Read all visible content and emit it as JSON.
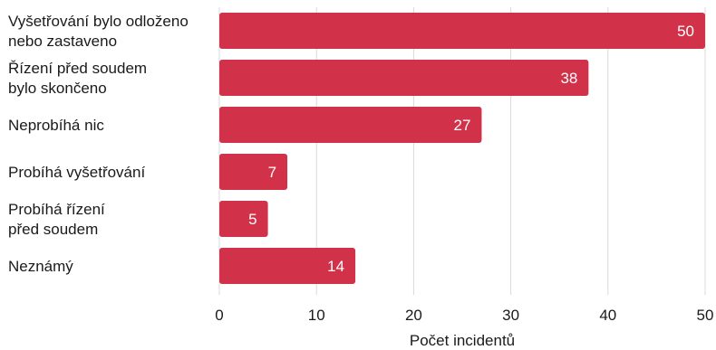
{
  "chart_data": {
    "type": "bar",
    "orientation": "horizontal",
    "categories": [
      [
        "Vyšetřování bylo odloženo",
        "nebo zastaveno"
      ],
      [
        "Řízení před soudem",
        "bylo skončeno"
      ],
      [
        "Neprobíhá nic"
      ],
      [
        "Probíhá vyšetřování"
      ],
      [
        "Probíhá řízení",
        "před soudem"
      ],
      [
        "Neznámý"
      ]
    ],
    "values": [
      50,
      38,
      27,
      7,
      5,
      14
    ],
    "xlabel": "Počet incidentů",
    "ylabel": "",
    "xlim": [
      0,
      50
    ],
    "xticks": [
      0,
      10,
      20,
      30,
      40,
      50
    ],
    "grid": true,
    "bar_color": "#d13149"
  }
}
